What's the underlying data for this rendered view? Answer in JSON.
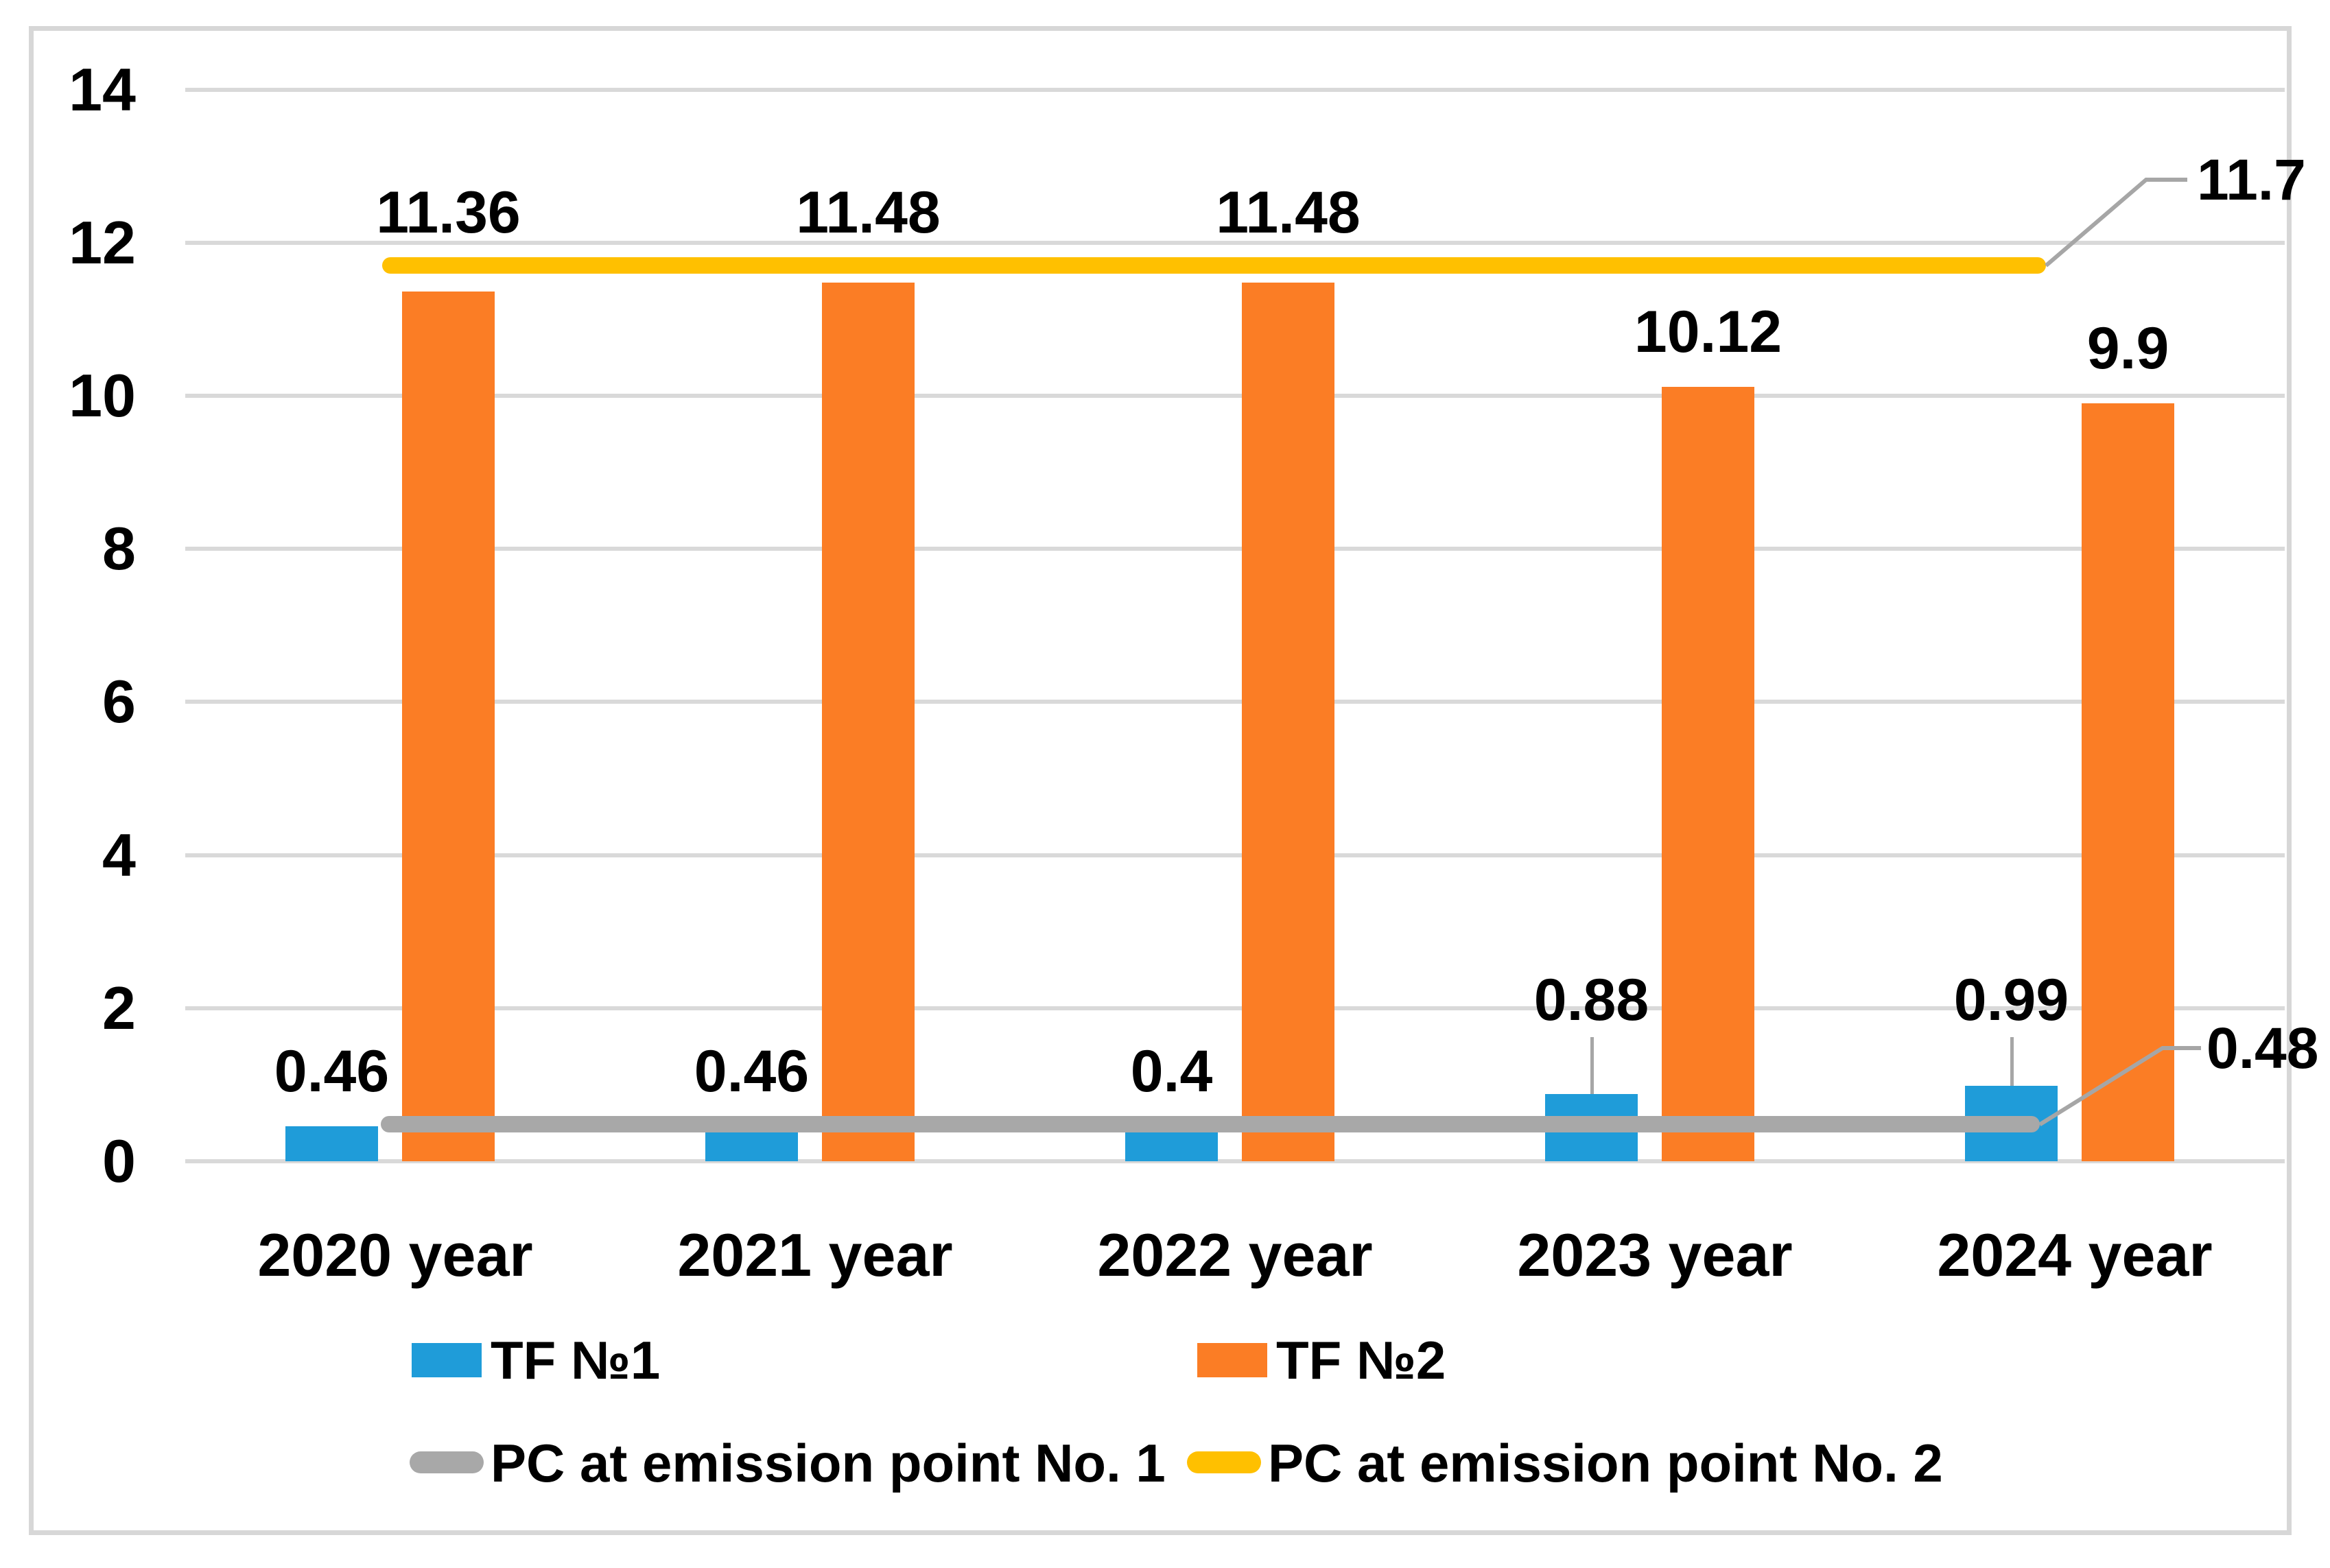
{
  "chart_data": {
    "type": "bar",
    "categories": [
      "2020 year",
      "2021 year",
      "2022 year",
      "2023 year",
      "2024 year"
    ],
    "series": [
      {
        "name": "TF №1",
        "kind": "bar",
        "color": "#1f9cd9",
        "values": [
          0.46,
          0.46,
          0.4,
          0.88,
          0.99
        ],
        "labels": [
          "0.46",
          "0.46",
          "0.4",
          "0.88",
          "0.99"
        ]
      },
      {
        "name": "TF №2",
        "kind": "bar",
        "color": "#fb7d25",
        "values": [
          11.36,
          11.48,
          11.48,
          10.12,
          9.9
        ],
        "labels": [
          "11.36",
          "11.48",
          "11.48",
          "10.12",
          "9.9"
        ]
      },
      {
        "name": "PC at emission point No. 1",
        "kind": "line",
        "color": "#a8a8a8",
        "value": 0.48,
        "callout_label": "0.48"
      },
      {
        "name": "PC at emission point No. 2",
        "kind": "line",
        "color": "#ffc000",
        "value": 11.7,
        "callout_label": "11.7"
      }
    ],
    "ylim": [
      0,
      14
    ],
    "yticks": [
      0,
      2,
      4,
      6,
      8,
      10,
      12,
      14
    ],
    "ytick_labels": [
      "0",
      "2",
      "4",
      "6",
      "8",
      "10",
      "12",
      "14"
    ],
    "title": "",
    "xlabel": "",
    "ylabel": "",
    "grid": true,
    "legend_position": "bottom"
  },
  "legend": {
    "items": [
      {
        "label": "TF №1",
        "swatch": "bar",
        "color": "#1f9cd9"
      },
      {
        "label": "TF №2",
        "swatch": "bar",
        "color": "#fb7d25"
      },
      {
        "label": "PC at emission point No. 1",
        "swatch": "line",
        "color": "#a8a8a8"
      },
      {
        "label": "PC at emission point No. 2",
        "swatch": "line",
        "color": "#ffc000"
      }
    ]
  },
  "callouts": [
    {
      "text": "11.7"
    },
    {
      "text": "0.48"
    }
  ],
  "colors": {
    "grid": "#d9d9d9",
    "frame": "#d7d7d7",
    "leader": "#a6a6a6",
    "text": "#000000"
  }
}
